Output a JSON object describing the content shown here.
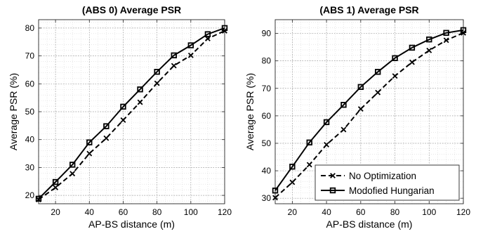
{
  "chart_data": [
    {
      "type": "line",
      "title": "(ABS 0) Average PSR",
      "xlabel": "AP-BS distance (m)",
      "ylabel": "Average PSR (%)",
      "xlim": [
        10,
        120
      ],
      "ylim": [
        17,
        83
      ],
      "xticks": [
        20,
        40,
        60,
        80,
        100,
        120
      ],
      "yticks": [
        20,
        30,
        40,
        50,
        60,
        70,
        80
      ],
      "grid": "on, dotted with minor grid",
      "x": [
        10,
        20,
        30,
        40,
        50,
        60,
        70,
        80,
        90,
        100,
        110,
        120
      ],
      "series": [
        {
          "name": "No Optimization",
          "style": "dashed",
          "marker": "x",
          "color": "#000000",
          "values": [
            18.5,
            22.8,
            27.8,
            35.0,
            40.5,
            47.0,
            53.4,
            60.2,
            66.5,
            70.2,
            76.2,
            79.0
          ]
        },
        {
          "name": "Modofied Hungarian",
          "style": "solid",
          "marker": "square",
          "color": "#000000",
          "values": [
            18.8,
            24.8,
            31.0,
            39.0,
            44.8,
            51.8,
            58.0,
            64.3,
            70.2,
            73.8,
            77.8,
            80.0
          ]
        }
      ]
    },
    {
      "type": "line",
      "title": "(ABS 1) Average PSR",
      "xlabel": "AP-BS distance (m)",
      "ylabel": "Average PSR (%)",
      "xlim": [
        10,
        120
      ],
      "ylim": [
        28,
        95
      ],
      "xticks": [
        20,
        40,
        60,
        80,
        100,
        120
      ],
      "yticks": [
        30,
        40,
        50,
        60,
        70,
        80,
        90
      ],
      "grid": "on, dotted with minor grid",
      "legend": "bottom-right",
      "x": [
        10,
        20,
        30,
        40,
        50,
        60,
        70,
        80,
        90,
        100,
        110,
        120
      ],
      "series": [
        {
          "name": "No Optimization",
          "style": "dashed",
          "marker": "x",
          "color": "#000000",
          "values": [
            30.2,
            35.8,
            42.2,
            49.5,
            55.0,
            62.5,
            68.5,
            74.5,
            79.5,
            83.8,
            87.5,
            90.2
          ]
        },
        {
          "name": "Modofied Hungarian",
          "style": "solid",
          "marker": "square",
          "color": "#000000",
          "values": [
            32.8,
            41.5,
            50.3,
            57.7,
            64.0,
            70.5,
            76.0,
            81.0,
            84.8,
            87.8,
            90.2,
            91.2
          ]
        }
      ]
    }
  ]
}
